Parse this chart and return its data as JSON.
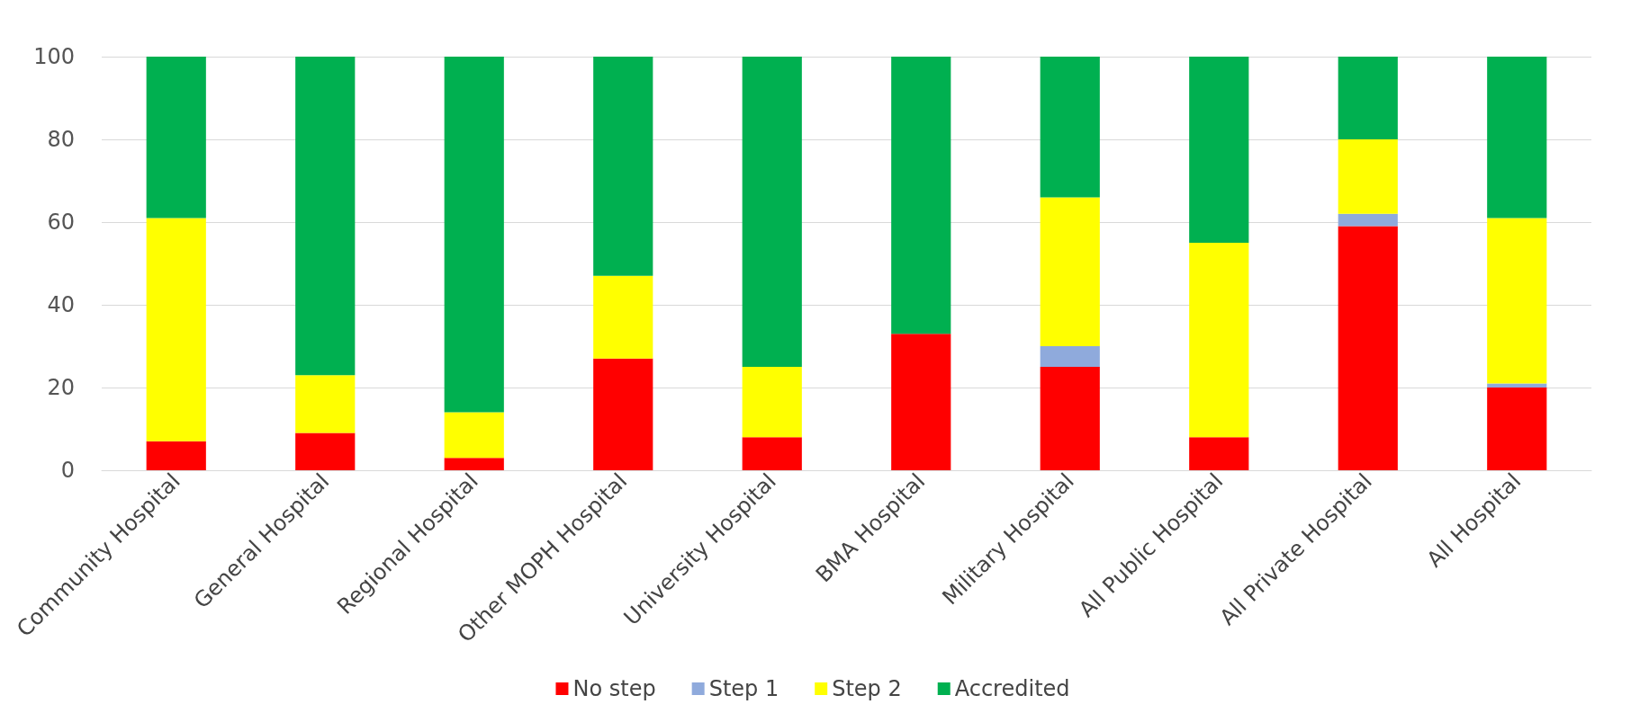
{
  "chart_data": {
    "type": "bar",
    "stacked": true,
    "categories": [
      "Community Hospital",
      "General Hospital",
      "Regional Hospital",
      "Other MOPH Hospital",
      "University Hospital",
      "BMA Hospital",
      "Military Hospital",
      "All Public Hospital",
      "All Private Hospital",
      "All Hospital"
    ],
    "series": [
      {
        "name": "No step",
        "color": "#ff0000",
        "values": [
          7,
          9,
          3,
          27,
          8,
          33,
          25,
          8,
          59,
          20
        ]
      },
      {
        "name": "Step 1",
        "color": "#8faadc",
        "values": [
          0,
          0,
          0,
          0,
          0,
          0,
          5,
          0,
          3,
          1
        ]
      },
      {
        "name": "Step 2",
        "color": "#ffff00",
        "values": [
          54,
          14,
          11,
          20,
          17,
          0,
          36,
          47,
          18,
          40
        ]
      },
      {
        "name": "Accredited",
        "color": "#00b050",
        "values": [
          39,
          77,
          86,
          53,
          75,
          67,
          34,
          45,
          20,
          39
        ]
      }
    ],
    "ylim": [
      0,
      100
    ],
    "yticks": [
      0,
      20,
      40,
      60,
      80,
      100
    ],
    "grid": "y",
    "legend": "bottom"
  }
}
